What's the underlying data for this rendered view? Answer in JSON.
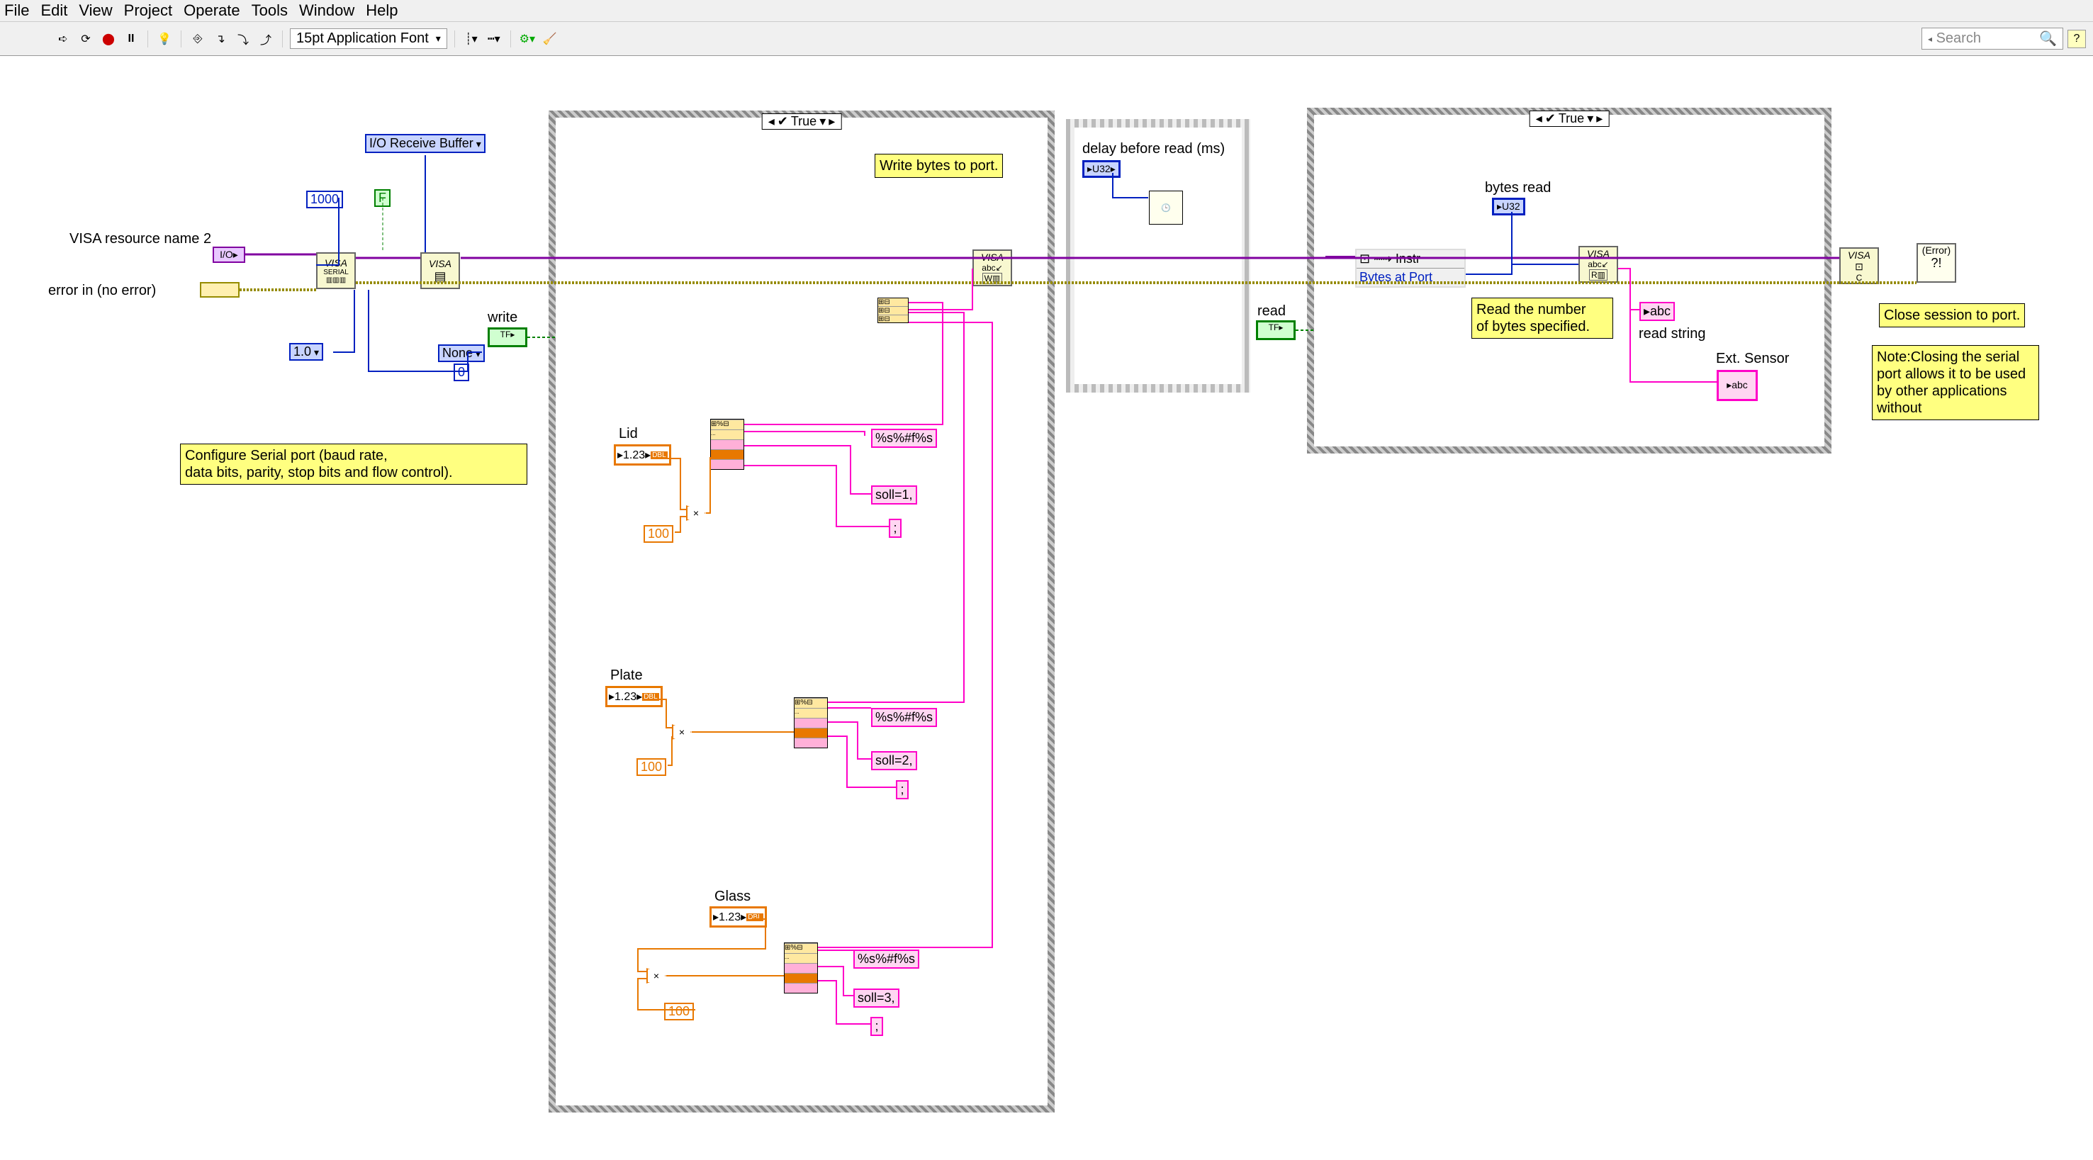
{
  "menu": {
    "items": [
      "File",
      "Edit",
      "View",
      "Project",
      "Operate",
      "Tools",
      "Window",
      "Help"
    ]
  },
  "toolbar": {
    "font": "15pt Application Font",
    "search_placeholder": "Search"
  },
  "diagram": {
    "io_buffer": "I/O Receive Buffer",
    "visa_resource": "VISA resource name 2",
    "error_in": "error in (no error)",
    "const_1000": "1000",
    "const_F": "F",
    "ver_sel": "1.0",
    "flow_none": "None",
    "const_0": "0",
    "write_label": "write",
    "note_config": "Configure Serial port (baud rate,\ndata bits, parity, stop bits and flow control).",
    "case1_sel": "True",
    "note_write": "Write bytes to port.",
    "lid": {
      "label": "Lid",
      "mult": "100",
      "fmt": "%s%#f%s",
      "soll": "soll=1,",
      "semi": ";"
    },
    "plate": {
      "label": "Plate",
      "mult": "100",
      "fmt": "%s%#f%s",
      "soll": "soll=2,",
      "semi": ";"
    },
    "glass": {
      "label": "Glass",
      "mult": "100",
      "fmt": "%s%#f%s",
      "soll": "soll=3,",
      "semi": ";"
    },
    "delay_label": "delay before read (ms)",
    "read_label": "read",
    "case2_sel": "True",
    "instr_label": "Instr",
    "bytes_at_port": "Bytes at Port",
    "bytes_read": "bytes read",
    "note_read": "Read the number\nof bytes specified.",
    "read_string": "read string",
    "ext_sensor": "Ext. Sensor",
    "note_close": "Close session to port.",
    "note_closing": "Note:Closing the serial\nport allows it to be used\nby other applications\nwithout"
  },
  "colors": {
    "purple": "#8000a0",
    "olive": "#808000",
    "dkyellow": "#968c00",
    "pink": "#ff00c8",
    "orange": "#e87800",
    "blue": "#0020c0",
    "green": "#008000"
  }
}
